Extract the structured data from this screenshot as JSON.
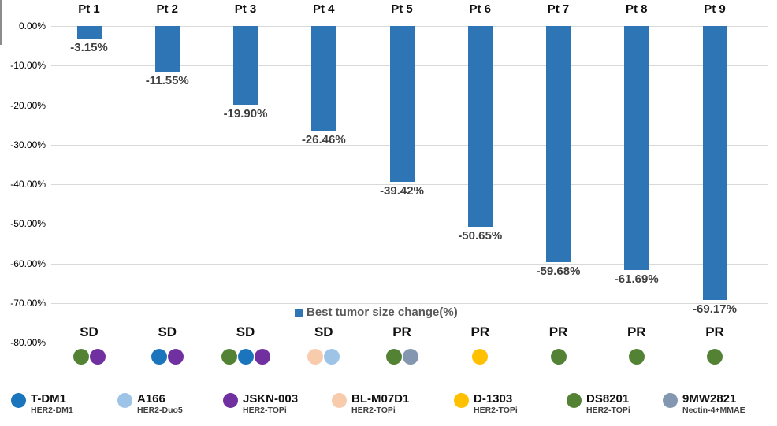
{
  "chart_data": {
    "type": "bar",
    "title": "",
    "series_label": "Best tumor size change(%)",
    "categories": [
      "Pt 1",
      "Pt 2",
      "Pt 3",
      "Pt 4",
      "Pt 5",
      "Pt 6",
      "Pt 7",
      "Pt 8",
      "Pt 9"
    ],
    "values": [
      -3.15,
      -11.55,
      -19.9,
      -26.46,
      -39.42,
      -50.65,
      -59.68,
      -61.69,
      -69.17
    ],
    "value_labels": [
      "-3.15%",
      "-11.55%",
      "-19.90%",
      "-26.46%",
      "-39.42%",
      "-50.65%",
      "-59.68%",
      "-61.69%",
      "-69.17%"
    ],
    "responses": [
      "SD",
      "SD",
      "SD",
      "SD",
      "PR",
      "PR",
      "PR",
      "PR",
      "PR"
    ],
    "prior_treatments": [
      [
        "DS8201",
        "JSKN-003"
      ],
      [
        "T-DM1",
        "JSKN-003"
      ],
      [
        "DS8201",
        "T-DM1",
        "JSKN-003"
      ],
      [
        "BL-M07D1",
        "A166"
      ],
      [
        "DS8201",
        "9MW2821"
      ],
      [
        "D-1303"
      ],
      [
        "DS8201"
      ],
      [
        "DS8201"
      ],
      [
        "DS8201"
      ]
    ],
    "xlabel": "",
    "ylabel": "",
    "y_ticks": [
      "0.00%",
      "-10.00%",
      "-20.00%",
      "-30.00%",
      "-40.00%",
      "-50.00%",
      "-60.00%",
      "-70.00%",
      "-80.00%"
    ],
    "ylim": [
      0,
      -80
    ],
    "grid": true,
    "legend_position": "center-below-plot",
    "bar_color": "#2E75B6",
    "gridline_color": "#D9D9D9"
  },
  "treatment_legend": {
    "items": [
      {
        "name": "T-DM1",
        "subtitle": "HER2-DM1",
        "color": "#1B75BC"
      },
      {
        "name": "A166",
        "subtitle": "HER2-Duo5",
        "color": "#9DC3E6"
      },
      {
        "name": "JSKN-003",
        "subtitle": "HER2-TOPi",
        "color": "#7030A0"
      },
      {
        "name": "BL-M07D1",
        "subtitle": "HER2-TOPi",
        "color": "#F8CBAD"
      },
      {
        "name": "D-1303",
        "subtitle": "HER2-TOPi",
        "color": "#FFC000"
      },
      {
        "name": "DS8201",
        "subtitle": "HER2-TOPi",
        "color": "#548235"
      },
      {
        "name": "9MW2821",
        "subtitle": "Nectin-4+MMAE",
        "color": "#8497B0"
      }
    ]
  }
}
